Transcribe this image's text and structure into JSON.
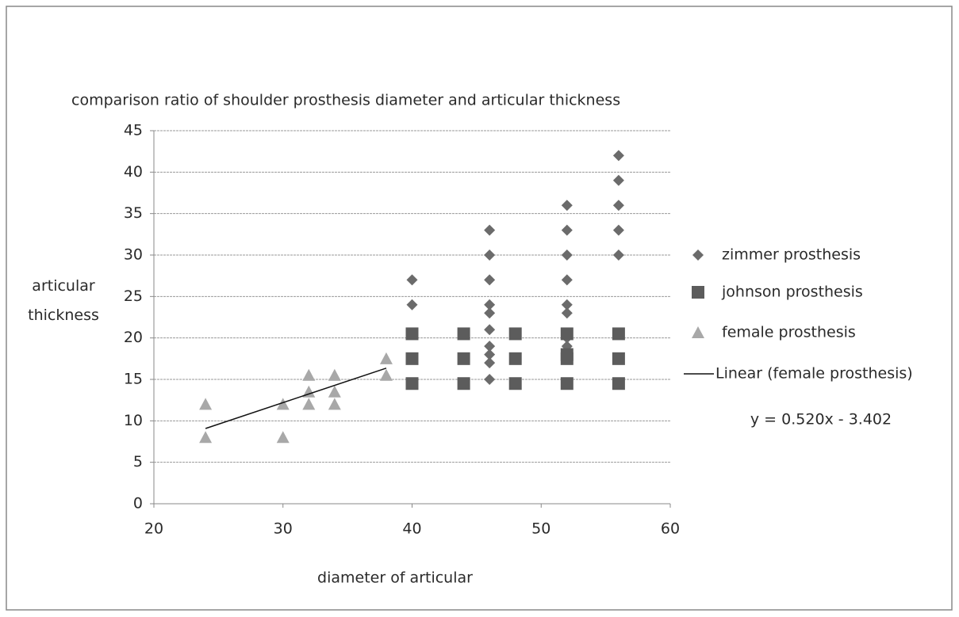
{
  "chart_data": {
    "type": "scatter",
    "title": "comparison  ratio of shoulder prosthesis diameter and articular thickness",
    "xlabel": "diameter of articular",
    "ylabel": "articular thickness",
    "xlim": [
      20,
      60
    ],
    "xticks": [
      20,
      30,
      40,
      50,
      60
    ],
    "ylim": [
      0,
      45
    ],
    "yticks": [
      0,
      5,
      10,
      15,
      20,
      25,
      30,
      35,
      40,
      45
    ],
    "grid": true,
    "legend": "right",
    "series": [
      {
        "name": "zimmer prosthesis",
        "color": "#6b6b6b",
        "marker": "diamond",
        "x": [
          40,
          40,
          46,
          46,
          46,
          46,
          46,
          46,
          46,
          46,
          46,
          46,
          52,
          52,
          52,
          52,
          52,
          52,
          52,
          52,
          56,
          56,
          56,
          56,
          56
        ],
        "values": [
          27,
          24,
          33,
          30,
          27,
          24,
          23,
          21,
          19,
          18,
          17,
          15,
          36,
          33,
          30,
          27,
          24,
          23,
          20,
          19,
          42,
          39,
          36,
          33,
          30
        ]
      },
      {
        "name": "johnson prosthesis",
        "color": "#5c5c5c",
        "marker": "square",
        "x": [
          40,
          40,
          40,
          44,
          44,
          44,
          48,
          48,
          48,
          52,
          52,
          52,
          52,
          56,
          56,
          56
        ],
        "values": [
          20.5,
          17.5,
          14.5,
          20.5,
          17.5,
          14.5,
          20.5,
          17.5,
          14.5,
          20.5,
          18,
          17.5,
          14.5,
          20.5,
          17.5,
          14.5
        ]
      },
      {
        "name": "female prosthesis",
        "color": "#a8a8a8",
        "marker": "triangle",
        "x": [
          24,
          24,
          30,
          30,
          32,
          32,
          32,
          34,
          34,
          34,
          38,
          38
        ],
        "values": [
          12,
          8,
          12,
          8,
          15.5,
          13.5,
          12,
          15.5,
          13.5,
          12,
          17.5,
          15.5
        ]
      }
    ],
    "trendline": {
      "name": "Linear (female prosthesis)",
      "color": "#111111",
      "equation": "y = 0.520x - 3.402",
      "x": [
        24,
        38
      ],
      "values": [
        9.078,
        16.358
      ]
    }
  }
}
